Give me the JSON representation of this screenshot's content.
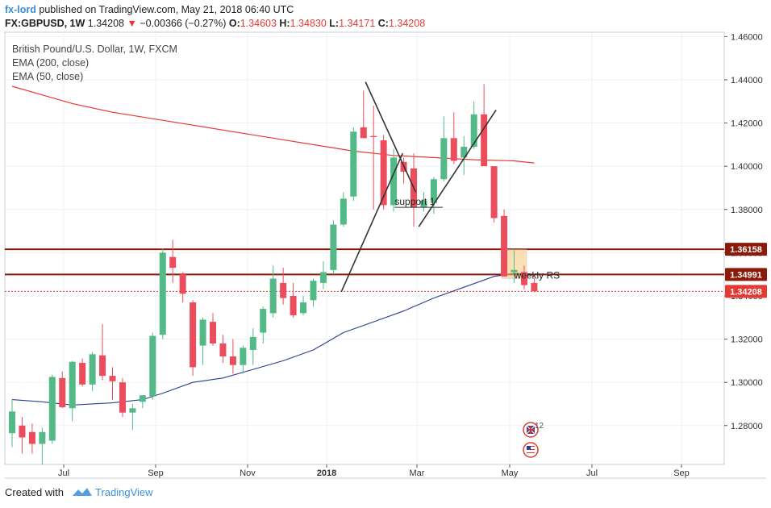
{
  "header": {
    "author": "fx-lord",
    "published_text": "published on TradingView.com, May 21, 2018 06:40 UTC",
    "symbol": "FX:GBPUSD, 1W",
    "last": "1.34208",
    "change": "−0.00366 (−0.27%)",
    "o_label": "O:",
    "o_value": "1.34603",
    "h_label": "H:",
    "h_value": "1.34830",
    "l_label": "L:",
    "l_value": "1.34171",
    "c_label": "C:",
    "c_value": "1.34208"
  },
  "legend": {
    "title": "British Pound/U.S. Dollar, 1W, FXCM",
    "ema200": "EMA (200, close)",
    "ema50": "EMA (50, close)"
  },
  "footer": {
    "created_with": "Created with",
    "brand": "TradingView"
  },
  "colors": {
    "up": "#53b987",
    "down": "#eb4d5c",
    "ema200": "#e53935",
    "ema50": "#2c3e8c",
    "level": "#8b1a0b",
    "brand": "#3a8ed8"
  },
  "chart_data": {
    "type": "candlestick",
    "title": "British Pound/U.S. Dollar, 1W, FXCM",
    "y_ticks": [
      "1.46000",
      "1.44000",
      "1.42000",
      "1.40000",
      "1.38000",
      "1.36000",
      "1.34000",
      "1.32000",
      "1.30000",
      "1.28000"
    ],
    "x_ticks": [
      "Jul",
      "Sep",
      "Nov",
      "2018",
      "Mar",
      "May",
      "Jul",
      "Sep"
    ],
    "ylim": [
      1.262,
      1.462
    ],
    "price_labels": [
      {
        "value": 1.36158,
        "text": "1.36158"
      },
      {
        "value": 1.34991,
        "text": "1.34991"
      },
      {
        "value": 1.34208,
        "text": "1.34208"
      }
    ],
    "annotations": [
      "support 1",
      "weekly RS"
    ],
    "event_icon_count": "12",
    "candles": [
      {
        "o": 1.2765,
        "h": 1.292,
        "l": 1.27,
        "c": 1.2865
      },
      {
        "o": 1.28,
        "h": 1.284,
        "l": 1.267,
        "c": 1.2745
      },
      {
        "o": 1.277,
        "h": 1.281,
        "l": 1.267,
        "c": 1.2715
      },
      {
        "o": 1.2715,
        "h": 1.279,
        "l": 1.262,
        "c": 1.277
      },
      {
        "o": 1.273,
        "h": 1.3035,
        "l": 1.2715,
        "c": 1.3025
      },
      {
        "o": 1.302,
        "h": 1.305,
        "l": 1.288,
        "c": 1.2885
      },
      {
        "o": 1.288,
        "h": 1.31,
        "l": 1.282,
        "c": 1.3095
      },
      {
        "o": 1.309,
        "h": 1.311,
        "l": 1.298,
        "c": 1.299
      },
      {
        "o": 1.299,
        "h": 1.314,
        "l": 1.296,
        "c": 1.313
      },
      {
        "o": 1.3125,
        "h": 1.327,
        "l": 1.301,
        "c": 1.303
      },
      {
        "o": 1.303,
        "h": 1.307,
        "l": 1.292,
        "c": 1.3005
      },
      {
        "o": 1.3,
        "h": 1.302,
        "l": 1.284,
        "c": 1.286
      },
      {
        "o": 1.286,
        "h": 1.29,
        "l": 1.278,
        "c": 1.288
      },
      {
        "o": 1.291,
        "h": 1.294,
        "l": 1.288,
        "c": 1.294
      },
      {
        "o": 1.2935,
        "h": 1.323,
        "l": 1.292,
        "c": 1.3215
      },
      {
        "o": 1.322,
        "h": 1.362,
        "l": 1.32,
        "c": 1.36
      },
      {
        "o": 1.358,
        "h": 1.366,
        "l": 1.346,
        "c": 1.353
      },
      {
        "o": 1.35,
        "h": 1.351,
        "l": 1.337,
        "c": 1.341
      },
      {
        "o": 1.337,
        "h": 1.338,
        "l": 1.303,
        "c": 1.307
      },
      {
        "o": 1.317,
        "h": 1.33,
        "l": 1.308,
        "c": 1.329
      },
      {
        "o": 1.328,
        "h": 1.332,
        "l": 1.317,
        "c": 1.318
      },
      {
        "o": 1.318,
        "h": 1.322,
        "l": 1.309,
        "c": 1.312
      },
      {
        "o": 1.312,
        "h": 1.32,
        "l": 1.304,
        "c": 1.308
      },
      {
        "o": 1.308,
        "h": 1.317,
        "l": 1.304,
        "c": 1.316
      },
      {
        "o": 1.315,
        "h": 1.325,
        "l": 1.308,
        "c": 1.321
      },
      {
        "o": 1.323,
        "h": 1.335,
        "l": 1.318,
        "c": 1.334
      },
      {
        "o": 1.332,
        "h": 1.354,
        "l": 1.33,
        "c": 1.348
      },
      {
        "o": 1.346,
        "h": 1.353,
        "l": 1.336,
        "c": 1.339
      },
      {
        "o": 1.34,
        "h": 1.346,
        "l": 1.33,
        "c": 1.331
      },
      {
        "o": 1.332,
        "h": 1.34,
        "l": 1.331,
        "c": 1.337
      },
      {
        "o": 1.338,
        "h": 1.348,
        "l": 1.335,
        "c": 1.347
      },
      {
        "o": 1.346,
        "h": 1.356,
        "l": 1.343,
        "c": 1.351
      },
      {
        "o": 1.352,
        "h": 1.375,
        "l": 1.35,
        "c": 1.373
      },
      {
        "o": 1.373,
        "h": 1.388,
        "l": 1.372,
        "c": 1.385
      },
      {
        "o": 1.386,
        "h": 1.418,
        "l": 1.384,
        "c": 1.416
      },
      {
        "o": 1.418,
        "h": 1.435,
        "l": 1.414,
        "c": 1.413
      },
      {
        "o": 1.414,
        "h": 1.428,
        "l": 1.38,
        "c": 1.4135
      },
      {
        "o": 1.412,
        "h": 1.4145,
        "l": 1.38,
        "c": 1.382
      },
      {
        "o": 1.382,
        "h": 1.408,
        "l": 1.379,
        "c": 1.404
      },
      {
        "o": 1.402,
        "h": 1.404,
        "l": 1.392,
        "c": 1.3975
      },
      {
        "o": 1.399,
        "h": 1.406,
        "l": 1.372,
        "c": 1.381
      },
      {
        "o": 1.381,
        "h": 1.388,
        "l": 1.379,
        "c": 1.384
      },
      {
        "o": 1.383,
        "h": 1.395,
        "l": 1.378,
        "c": 1.394
      },
      {
        "o": 1.394,
        "h": 1.423,
        "l": 1.393,
        "c": 1.413
      },
      {
        "o": 1.413,
        "h": 1.425,
        "l": 1.401,
        "c": 1.4025
      },
      {
        "o": 1.404,
        "h": 1.414,
        "l": 1.396,
        "c": 1.409
      },
      {
        "o": 1.409,
        "h": 1.43,
        "l": 1.408,
        "c": 1.424
      },
      {
        "o": 1.424,
        "h": 1.438,
        "l": 1.4,
        "c": 1.4
      },
      {
        "o": 1.4,
        "h": 1.4,
        "l": 1.374,
        "c": 1.376
      },
      {
        "o": 1.377,
        "h": 1.38,
        "l": 1.349,
        "c": 1.349
      },
      {
        "o": 1.351,
        "h": 1.361,
        "l": 1.346,
        "c": 1.352
      },
      {
        "o": 1.351,
        "h": 1.354,
        "l": 1.343,
        "c": 1.345
      },
      {
        "o": 1.346,
        "h": 1.3483,
        "l": 1.3417,
        "c": 1.3421
      }
    ],
    "ema200": [
      {
        "i": 0,
        "v": 1.437
      },
      {
        "i": 3,
        "v": 1.433
      },
      {
        "i": 6,
        "v": 1.429
      },
      {
        "i": 10,
        "v": 1.425
      },
      {
        "i": 14,
        "v": 1.422
      },
      {
        "i": 18,
        "v": 1.419
      },
      {
        "i": 22,
        "v": 1.416
      },
      {
        "i": 26,
        "v": 1.413
      },
      {
        "i": 30,
        "v": 1.41
      },
      {
        "i": 34,
        "v": 1.407
      },
      {
        "i": 38,
        "v": 1.405
      },
      {
        "i": 42,
        "v": 1.404
      },
      {
        "i": 46,
        "v": 1.403
      },
      {
        "i": 50,
        "v": 1.4025
      },
      {
        "i": 52,
        "v": 1.4015
      }
    ],
    "ema50": [
      {
        "i": 0,
        "v": 1.292
      },
      {
        "i": 3,
        "v": 1.291
      },
      {
        "i": 6,
        "v": 1.2895
      },
      {
        "i": 10,
        "v": 1.2905
      },
      {
        "i": 13,
        "v": 1.292
      },
      {
        "i": 15,
        "v": 1.295
      },
      {
        "i": 18,
        "v": 1.3
      },
      {
        "i": 21,
        "v": 1.302
      },
      {
        "i": 24,
        "v": 1.306
      },
      {
        "i": 27,
        "v": 1.31
      },
      {
        "i": 30,
        "v": 1.315
      },
      {
        "i": 33,
        "v": 1.323
      },
      {
        "i": 36,
        "v": 1.328
      },
      {
        "i": 39,
        "v": 1.333
      },
      {
        "i": 42,
        "v": 1.339
      },
      {
        "i": 45,
        "v": 1.344
      },
      {
        "i": 48,
        "v": 1.349
      },
      {
        "i": 50,
        "v": 1.3505
      },
      {
        "i": 52,
        "v": 1.35
      }
    ]
  }
}
